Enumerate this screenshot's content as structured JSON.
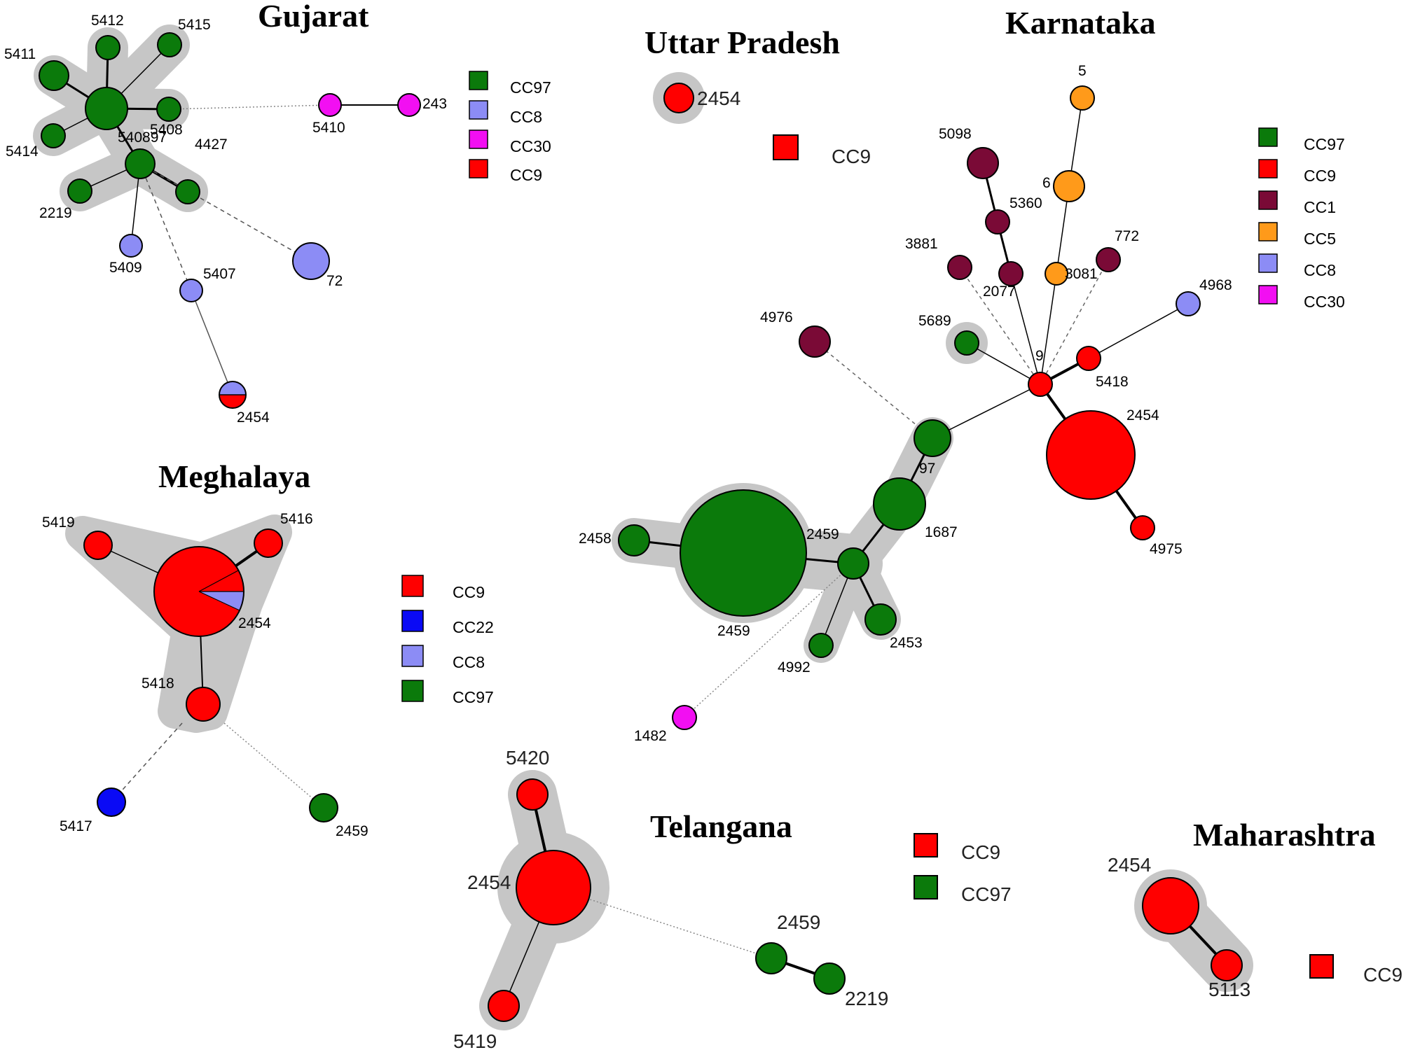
{
  "colors": {
    "CC97": "#0b7a0b",
    "CC8": "#8c8cf5",
    "CC30": "#f20ff2",
    "CC9": "#ff0000",
    "CC1": "#7a0a36",
    "CC5": "#ff9a1a",
    "CC22": "#0a0af5"
  },
  "regions": {
    "gujarat": {
      "title": "Gujarat",
      "legend": [
        "CC97",
        "CC8",
        "CC30",
        "CC9"
      ],
      "nodes": [
        {
          "id": "5412",
          "cc": "CC97"
        },
        {
          "id": "5415",
          "cc": "CC97"
        },
        {
          "id": "5411",
          "cc": "CC97"
        },
        {
          "id": "5408",
          "cc": "CC97"
        },
        {
          "id": "5414",
          "cc": "CC97"
        },
        {
          "id": "97",
          "cc": "CC97"
        },
        {
          "id": "4427",
          "cc": "CC97"
        },
        {
          "id": "2219",
          "cc": "CC97"
        },
        {
          "id": "5409",
          "cc": "CC8"
        },
        {
          "id": "5407",
          "cc": "CC8"
        },
        {
          "id": "72",
          "cc": "CC8"
        },
        {
          "id": "5410",
          "cc": "CC30"
        },
        {
          "id": "243",
          "cc": "CC30"
        },
        {
          "id": "2454",
          "cc": "CC8/CC9"
        }
      ],
      "labels": {
        "n5412": "5412",
        "n5415": "5415",
        "n5411": "5411",
        "n5408": "5408",
        "n5414": "5414",
        "n5408_97": "540897",
        "n4427": "4427",
        "n2219": "2219",
        "n5409": "5409",
        "n5407": "5407",
        "n72": "72",
        "n5410": "5410",
        "n243": "243",
        "n2454": "2454"
      }
    },
    "uttar_pradesh": {
      "title": "Uttar Pradesh",
      "legend": [
        "CC9"
      ],
      "labels": {
        "n2454": "2454"
      }
    },
    "karnataka": {
      "title": "Karnataka",
      "legend": [
        "CC97",
        "CC9",
        "CC1",
        "CC5",
        "CC8",
        "CC30"
      ],
      "labels": {
        "n5": "5",
        "n6": "6",
        "n5098": "5098",
        "n5360": "5360",
        "n3881": "3881",
        "n772": "772",
        "n2077": "2077",
        "n3081": "3081",
        "n4968": "4968",
        "n4976": "4976",
        "n5689": "5689",
        "n9": "9",
        "n5418": "5418",
        "n2454": "2454",
        "n97": "97",
        "n1687": "1687",
        "n2458": "2458",
        "n2459a": "2459",
        "n2459b": "2459",
        "n4975": "4975",
        "n2453": "2453",
        "n4992": "4992",
        "n1482": "1482"
      }
    },
    "meghalaya": {
      "title": "Meghalaya",
      "legend": [
        "CC9",
        "CC22",
        "CC8",
        "CC97"
      ],
      "labels": {
        "n5419": "5419",
        "n5416": "5416",
        "n2454": "2454",
        "n5418": "5418",
        "n5417": "5417",
        "n2459": "2459"
      }
    },
    "telangana": {
      "title": "Telangana",
      "legend": [
        "CC9",
        "CC97"
      ],
      "labels": {
        "n5420": "5420",
        "n2454": "2454",
        "n5419": "5419",
        "n2459": "2459",
        "n2219": "2219"
      }
    },
    "maharashtra": {
      "title": "Maharashtra",
      "legend": [
        "CC9"
      ],
      "labels": {
        "n2454": "2454",
        "n5113": "5113"
      }
    }
  }
}
